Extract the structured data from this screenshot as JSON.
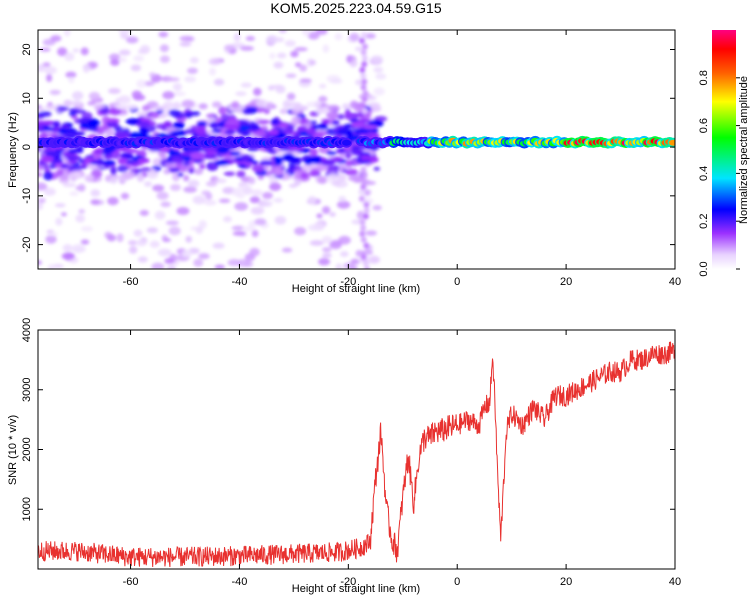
{
  "title": "KOM5.2025.223.04.59.G15",
  "chart_data": [
    {
      "type": "heatmap",
      "xlabel": "Height of straight line (km)",
      "ylabel": "Frequency (Hz)",
      "xlim": [
        -77,
        40
      ],
      "ylim": [
        -25,
        24
      ],
      "xticks": [
        -60,
        -40,
        -20,
        0,
        20,
        40
      ],
      "yticks": [
        -20,
        -10,
        0,
        10,
        20
      ],
      "xtick_labels": [
        "-60",
        "-40",
        "-20",
        "0",
        "20",
        "40"
      ],
      "ytick_labels": [
        "-20",
        "-10",
        "0",
        "10",
        "20"
      ],
      "ridge_frequency_hz": 1,
      "ridge_segments": [
        {
          "x0": -77,
          "x1": -60,
          "amp": 0.25
        },
        {
          "x0": -60,
          "x1": -20,
          "amp": 0.25
        },
        {
          "x0": -18,
          "x1": -12,
          "amp": 0.3
        },
        {
          "x0": -12,
          "x1": -5,
          "amp": 0.45
        },
        {
          "x0": -5,
          "x1": 6,
          "amp": 0.7
        },
        {
          "x0": 6,
          "x1": 20,
          "amp": 0.65
        },
        {
          "x0": 20,
          "x1": 40,
          "amp": 0.85
        }
      ],
      "colorbar": {
        "label": "Normalized spectral amplitude",
        "range": [
          0.0,
          1.0
        ],
        "ticks": [
          0.0,
          0.2,
          0.4,
          0.6,
          0.8
        ],
        "tick_labels": [
          "0.0",
          "0.2",
          "0.4",
          "0.6",
          "0.8"
        ]
      }
    },
    {
      "type": "line",
      "xlabel": "Height of straight line (km)",
      "ylabel": "SNR (10 * v/v)",
      "xlim": [
        -77,
        40
      ],
      "ylim": [
        0,
        4000
      ],
      "xticks": [
        -60,
        -40,
        -20,
        0,
        20,
        40
      ],
      "yticks": [
        1000,
        2000,
        3000,
        4000
      ],
      "xtick_labels": [
        "-60",
        "-40",
        "-20",
        "0",
        "20",
        "40"
      ],
      "ytick_labels": [
        "1000",
        "2000",
        "3000",
        "4000"
      ],
      "series": [
        {
          "name": "SNR",
          "color": "#e8312f",
          "x": [
            -77,
            -70,
            -60,
            -50,
            -40,
            -30,
            -22,
            -18,
            -16,
            -15,
            -14,
            -13,
            -12,
            -11,
            -10,
            -9,
            -8,
            -7,
            -6,
            -5,
            -4,
            -3,
            -2,
            0,
            2,
            4,
            5,
            6,
            6.5,
            7,
            7.5,
            8,
            9,
            10,
            12,
            14,
            16,
            18,
            20,
            22,
            24,
            26,
            28,
            30,
            32,
            34,
            36,
            38,
            40
          ],
          "y": [
            300,
            300,
            200,
            200,
            220,
            250,
            280,
            350,
            450,
            1500,
            2300,
            1000,
            500,
            300,
            1200,
            1900,
            1100,
            1900,
            2200,
            2200,
            2300,
            2300,
            2350,
            2400,
            2500,
            2400,
            2700,
            2800,
            3600,
            2600,
            1400,
            500,
            2300,
            2600,
            2400,
            2700,
            2500,
            2900,
            2900,
            3000,
            3100,
            3200,
            3300,
            3300,
            3500,
            3500,
            3600,
            3600,
            3650
          ]
        }
      ]
    }
  ]
}
